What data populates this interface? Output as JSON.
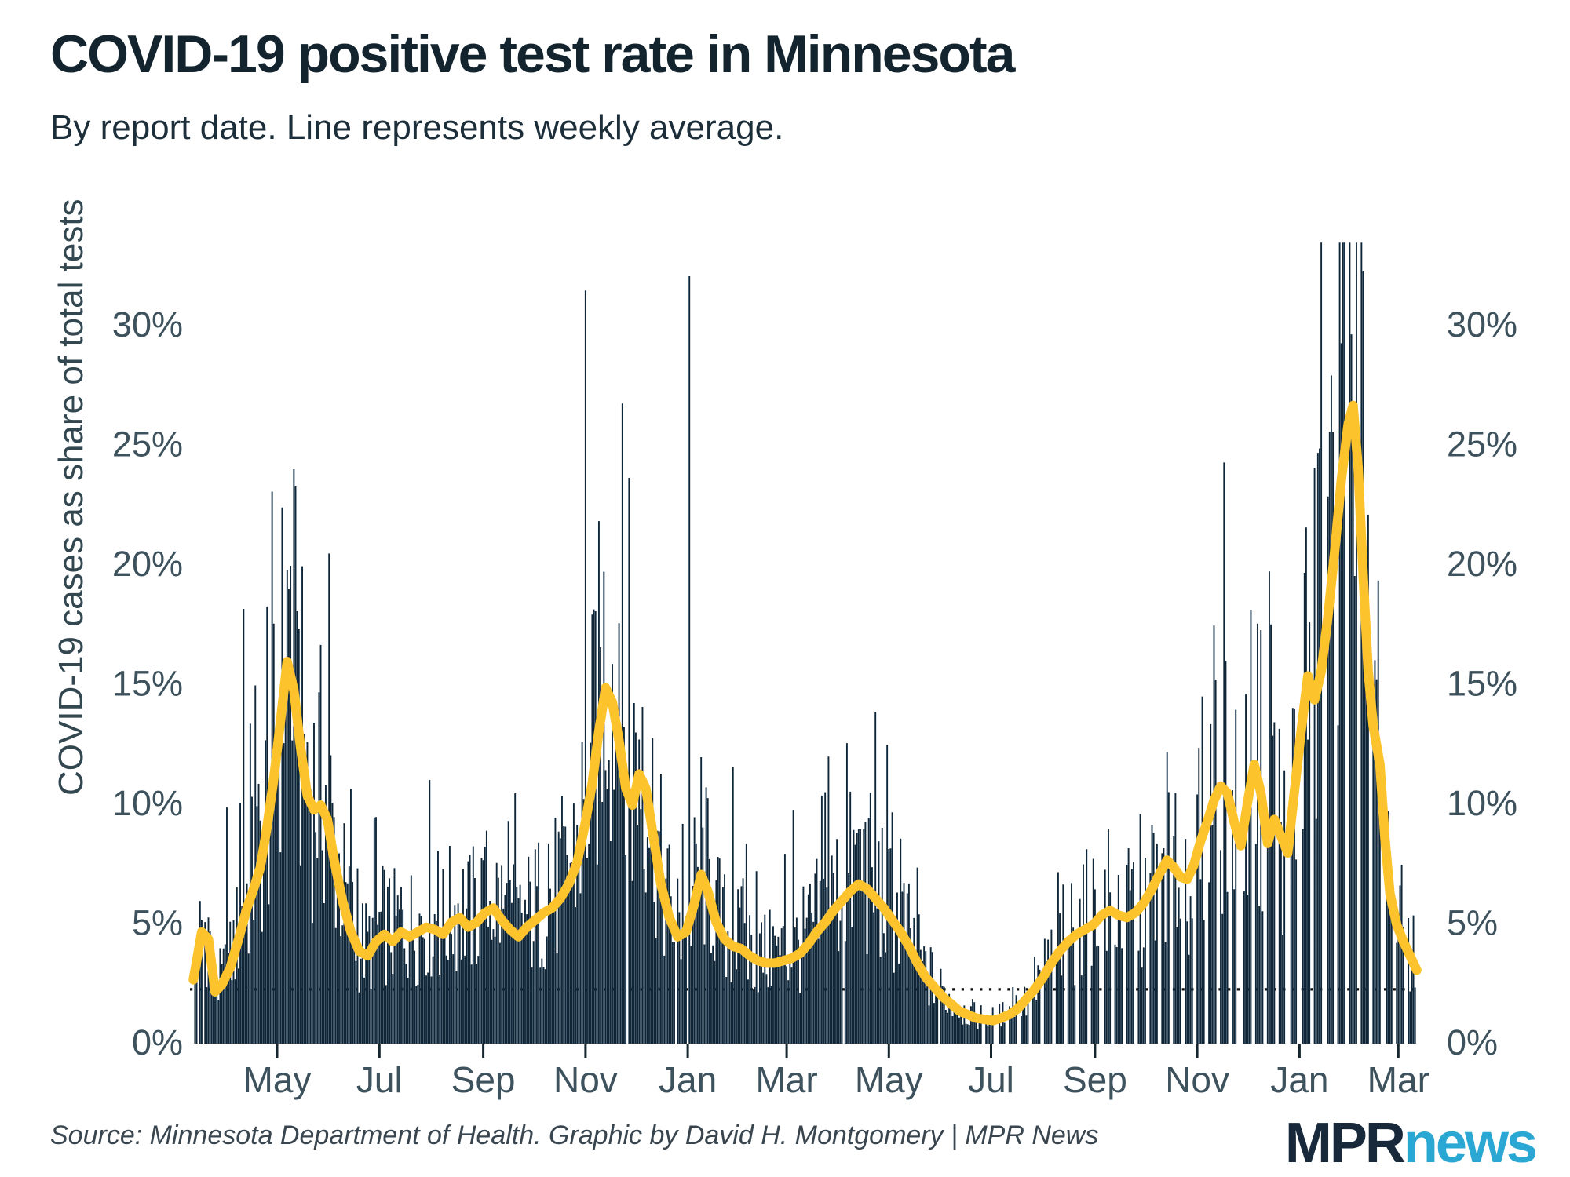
{
  "title": "COVID-19 positive test rate in Minnesota",
  "subtitle": "By report date. Line represents weekly average.",
  "footer": {
    "source": "Source: Minnesota Department of Health. Graphic by David H. Montgomery | MPR News"
  },
  "logo": {
    "mpr": "MPR",
    "news": "news",
    "mpr_color": "#17293a",
    "news_color": "#2aa7d2"
  },
  "colors": {
    "bar": "#0e2639",
    "line": "#fcc32d",
    "axis_text": "#3d525d",
    "tick_mark": "#16262f",
    "title_text": "#13242f",
    "reference_dotted": "#0b0b0b",
    "background": "#ffffff"
  },
  "chart_data": {
    "type": "bar+line",
    "title": "COVID-19 positive test rate in Minnesota",
    "subtitle": "By report date. Line represents weekly average.",
    "y_axis": {
      "label": "COVID-19 cases as share of total tests",
      "tick_labels": [
        "0%",
        "5%",
        "10%",
        "15%",
        "20%",
        "25%",
        "30%"
      ],
      "tick_values": [
        0,
        5,
        10,
        15,
        20,
        25,
        30
      ],
      "range": [
        0,
        33.5
      ],
      "mirrored_right": true
    },
    "x_axis": {
      "tick_labels": [
        "May",
        "Jul",
        "Sep",
        "Nov",
        "Jan",
        "Mar",
        "May",
        "Jul",
        "Sep",
        "Nov",
        "Jan",
        "Mar"
      ],
      "tick_dates": [
        "2020-05-01",
        "2020-07-01",
        "2020-09-01",
        "2020-11-01",
        "2021-01-01",
        "2021-03-01",
        "2021-05-01",
        "2021-07-01",
        "2021-09-01",
        "2021-11-01",
        "2022-01-01",
        "2022-03-01"
      ]
    },
    "start_date": "2020-03-10",
    "end_date": "2022-03-12",
    "reference_line_value": 2.2,
    "grid": false,
    "legend": "none",
    "weekly_average": {
      "name": "Weekly average positive test rate (%)",
      "points": [
        [
          "2020-03-12",
          2.6
        ],
        [
          "2020-03-17",
          4.6
        ],
        [
          "2020-03-21",
          4.3
        ],
        [
          "2020-03-25",
          2.1
        ],
        [
          "2020-03-29",
          2.4
        ],
        [
          "2020-04-03",
          3.1
        ],
        [
          "2020-04-08",
          4.3
        ],
        [
          "2020-04-13",
          5.6
        ],
        [
          "2020-04-17",
          6.4
        ],
        [
          "2020-04-21",
          7.3
        ],
        [
          "2020-04-25",
          9.0
        ],
        [
          "2020-04-29",
          11.0
        ],
        [
          "2020-05-03",
          13.4
        ],
        [
          "2020-05-07",
          15.9
        ],
        [
          "2020-05-11",
          14.7
        ],
        [
          "2020-05-15",
          12.3
        ],
        [
          "2020-05-19",
          10.3
        ],
        [
          "2020-05-23",
          9.7
        ],
        [
          "2020-05-27",
          9.9
        ],
        [
          "2020-05-31",
          9.3
        ],
        [
          "2020-06-04",
          7.6
        ],
        [
          "2020-06-09",
          5.9
        ],
        [
          "2020-06-14",
          4.6
        ],
        [
          "2020-06-19",
          3.8
        ],
        [
          "2020-06-24",
          3.6
        ],
        [
          "2020-06-29",
          4.2
        ],
        [
          "2020-07-04",
          4.5
        ],
        [
          "2020-07-09",
          4.2
        ],
        [
          "2020-07-14",
          4.6
        ],
        [
          "2020-07-19",
          4.4
        ],
        [
          "2020-07-24",
          4.6
        ],
        [
          "2020-07-29",
          4.8
        ],
        [
          "2020-08-03",
          4.7
        ],
        [
          "2020-08-08",
          4.5
        ],
        [
          "2020-08-13",
          5.0
        ],
        [
          "2020-08-18",
          5.2
        ],
        [
          "2020-08-23",
          4.8
        ],
        [
          "2020-08-28",
          5.0
        ],
        [
          "2020-09-02",
          5.4
        ],
        [
          "2020-09-07",
          5.6
        ],
        [
          "2020-09-12",
          5.1
        ],
        [
          "2020-09-17",
          4.7
        ],
        [
          "2020-09-22",
          4.4
        ],
        [
          "2020-09-27",
          4.8
        ],
        [
          "2020-10-02",
          5.1
        ],
        [
          "2020-10-07",
          5.4
        ],
        [
          "2020-10-12",
          5.6
        ],
        [
          "2020-10-17",
          6.0
        ],
        [
          "2020-10-22",
          6.6
        ],
        [
          "2020-10-27",
          7.5
        ],
        [
          "2020-11-01",
          9.2
        ],
        [
          "2020-11-05",
          10.8
        ],
        [
          "2020-11-09",
          13.0
        ],
        [
          "2020-11-13",
          14.8
        ],
        [
          "2020-11-17",
          14.2
        ],
        [
          "2020-11-21",
          12.6
        ],
        [
          "2020-11-25",
          10.6
        ],
        [
          "2020-11-29",
          9.9
        ],
        [
          "2020-12-03",
          11.2
        ],
        [
          "2020-12-07",
          10.6
        ],
        [
          "2020-12-11",
          8.8
        ],
        [
          "2020-12-16",
          6.6
        ],
        [
          "2020-12-21",
          5.2
        ],
        [
          "2020-12-26",
          4.4
        ],
        [
          "2020-12-31",
          4.6
        ],
        [
          "2021-01-05",
          5.8
        ],
        [
          "2021-01-09",
          7.0
        ],
        [
          "2021-01-13",
          6.3
        ],
        [
          "2021-01-18",
          5.0
        ],
        [
          "2021-01-23",
          4.3
        ],
        [
          "2021-01-28",
          4.0
        ],
        [
          "2021-02-02",
          3.9
        ],
        [
          "2021-02-07",
          3.6
        ],
        [
          "2021-02-12",
          3.4
        ],
        [
          "2021-02-17",
          3.3
        ],
        [
          "2021-02-22",
          3.3
        ],
        [
          "2021-02-27",
          3.4
        ],
        [
          "2021-03-04",
          3.5
        ],
        [
          "2021-03-09",
          3.7
        ],
        [
          "2021-03-14",
          4.1
        ],
        [
          "2021-03-19",
          4.6
        ],
        [
          "2021-03-24",
          5.0
        ],
        [
          "2021-03-29",
          5.5
        ],
        [
          "2021-04-03",
          5.9
        ],
        [
          "2021-04-08",
          6.3
        ],
        [
          "2021-04-13",
          6.6
        ],
        [
          "2021-04-18",
          6.4
        ],
        [
          "2021-04-23",
          6.0
        ],
        [
          "2021-04-28",
          5.6
        ],
        [
          "2021-05-03",
          5.1
        ],
        [
          "2021-05-08",
          4.6
        ],
        [
          "2021-05-13",
          4.0
        ],
        [
          "2021-05-18",
          3.3
        ],
        [
          "2021-05-23",
          2.7
        ],
        [
          "2021-05-28",
          2.3
        ],
        [
          "2021-06-02",
          1.9
        ],
        [
          "2021-06-07",
          1.6
        ],
        [
          "2021-06-12",
          1.3
        ],
        [
          "2021-06-17",
          1.15
        ],
        [
          "2021-06-22",
          1.0
        ],
        [
          "2021-06-27",
          0.95
        ],
        [
          "2021-07-02",
          0.9
        ],
        [
          "2021-07-07",
          1.0
        ],
        [
          "2021-07-12",
          1.15
        ],
        [
          "2021-07-17",
          1.4
        ],
        [
          "2021-07-22",
          1.8
        ],
        [
          "2021-07-27",
          2.2
        ],
        [
          "2021-08-01",
          2.7
        ],
        [
          "2021-08-06",
          3.3
        ],
        [
          "2021-08-11",
          3.8
        ],
        [
          "2021-08-16",
          4.2
        ],
        [
          "2021-08-21",
          4.5
        ],
        [
          "2021-08-26",
          4.7
        ],
        [
          "2021-08-31",
          4.9
        ],
        [
          "2021-09-05",
          5.3
        ],
        [
          "2021-09-10",
          5.5
        ],
        [
          "2021-09-15",
          5.3
        ],
        [
          "2021-09-20",
          5.2
        ],
        [
          "2021-09-25",
          5.4
        ],
        [
          "2021-09-30",
          5.8
        ],
        [
          "2021-10-05",
          6.4
        ],
        [
          "2021-10-10",
          7.1
        ],
        [
          "2021-10-14",
          7.6
        ],
        [
          "2021-10-18",
          7.3
        ],
        [
          "2021-10-22",
          6.9
        ],
        [
          "2021-10-26",
          6.8
        ],
        [
          "2021-10-30",
          7.4
        ],
        [
          "2021-11-03",
          8.4
        ],
        [
          "2021-11-07",
          9.2
        ],
        [
          "2021-11-11",
          10.1
        ],
        [
          "2021-11-15",
          10.7
        ],
        [
          "2021-11-19",
          10.4
        ],
        [
          "2021-11-23",
          9.2
        ],
        [
          "2021-11-27",
          8.2
        ],
        [
          "2021-12-01",
          10.0
        ],
        [
          "2021-12-05",
          11.6
        ],
        [
          "2021-12-09",
          10.4
        ],
        [
          "2021-12-13",
          8.3
        ],
        [
          "2021-12-17",
          9.3
        ],
        [
          "2021-12-21",
          8.6
        ],
        [
          "2021-12-25",
          7.9
        ],
        [
          "2021-12-29",
          10.5
        ],
        [
          "2022-01-02",
          13.0
        ],
        [
          "2022-01-06",
          15.3
        ],
        [
          "2022-01-10",
          14.3
        ],
        [
          "2022-01-14",
          15.5
        ],
        [
          "2022-01-18",
          17.8
        ],
        [
          "2022-01-22",
          20.5
        ],
        [
          "2022-01-26",
          23.5
        ],
        [
          "2022-01-30",
          25.8
        ],
        [
          "2022-02-02",
          26.6
        ],
        [
          "2022-02-05",
          24.0
        ],
        [
          "2022-02-08",
          19.5
        ],
        [
          "2022-02-11",
          15.5
        ],
        [
          "2022-02-14",
          13.2
        ],
        [
          "2022-02-18",
          11.6
        ],
        [
          "2022-02-21",
          8.5
        ],
        [
          "2022-02-24",
          6.2
        ],
        [
          "2022-02-28",
          4.9
        ],
        [
          "2022-03-04",
          4.2
        ],
        [
          "2022-03-08",
          3.6
        ],
        [
          "2022-03-12",
          3.0
        ]
      ]
    },
    "daily_bars": {
      "name": "Daily positive test rate (%)",
      "first_date": "2020-03-13",
      "derivation": "daily value = weekly_average interpolated × deterministic noise factor, except listed outliers",
      "noise": {
        "base": 0.5,
        "span": 1.2,
        "spike_chance": 0.045,
        "spike_extra": 0.9,
        "min_factor": 0.28,
        "max_factor": 2.3
      },
      "value_cap": 33.4,
      "value_floor": 0.25,
      "outliers": {
        "2020-04-01": 9.8,
        "2020-04-11": 18.1,
        "2020-04-15": 13.3,
        "2020-04-18": 14.9,
        "2020-04-25": 18.2,
        "2020-04-28": 23.0,
        "2020-05-09": 19.9,
        "2020-05-13": 18.0,
        "2020-06-29": 9.4,
        "2020-08-05": 8.0,
        "2020-09-01": 7.6,
        "2020-10-10": 8.3,
        "2020-10-20": 9.0,
        "2020-11-01": 31.4,
        "2020-11-07": 18.0,
        "2020-11-10": 16.5,
        "2020-11-21": 17.5,
        "2020-12-05": 14.0,
        "2021-01-02": 32.0,
        "2021-01-09": 11.9,
        "2021-01-28": 11.5,
        "2021-03-05": 9.7,
        "2021-03-22": 10.3,
        "2021-04-13": 8.9,
        "2021-04-17": 9.2,
        "2021-05-03": 9.6,
        "2021-05-08": 8.5,
        "2021-08-10": 7.1,
        "2021-09-07": 7.2,
        "2021-10-18": 8.6,
        "2021-11-11": 17.4,
        "2021-12-04": 15.5,
        "2021-12-16": 12.8,
        "2022-01-01": 20.6,
        "2022-01-05": 21.5,
        "2022-01-10": 24.0,
        "2022-01-14": 33.4,
        "2022-01-19": 25.5,
        "2022-01-22": 27.0,
        "2022-01-26": 29.2,
        "2022-02-02": 26.0,
        "2022-02-09": 18.5
      },
      "missing_dates": [
        "2020-03-15",
        "2020-03-18",
        "2020-11-26",
        "2020-12-25",
        "2021-01-01",
        "2021-04-04",
        "2021-05-31",
        "2021-07-05",
        "2021-09-06",
        "2021-11-25",
        "2021-11-26",
        "2021-12-24",
        "2021-12-25",
        "2021-12-31",
        "2022-01-01",
        "2022-01-17",
        "2022-02-21"
      ],
      "weekend_gaps_from": "2021-06-26"
    }
  }
}
